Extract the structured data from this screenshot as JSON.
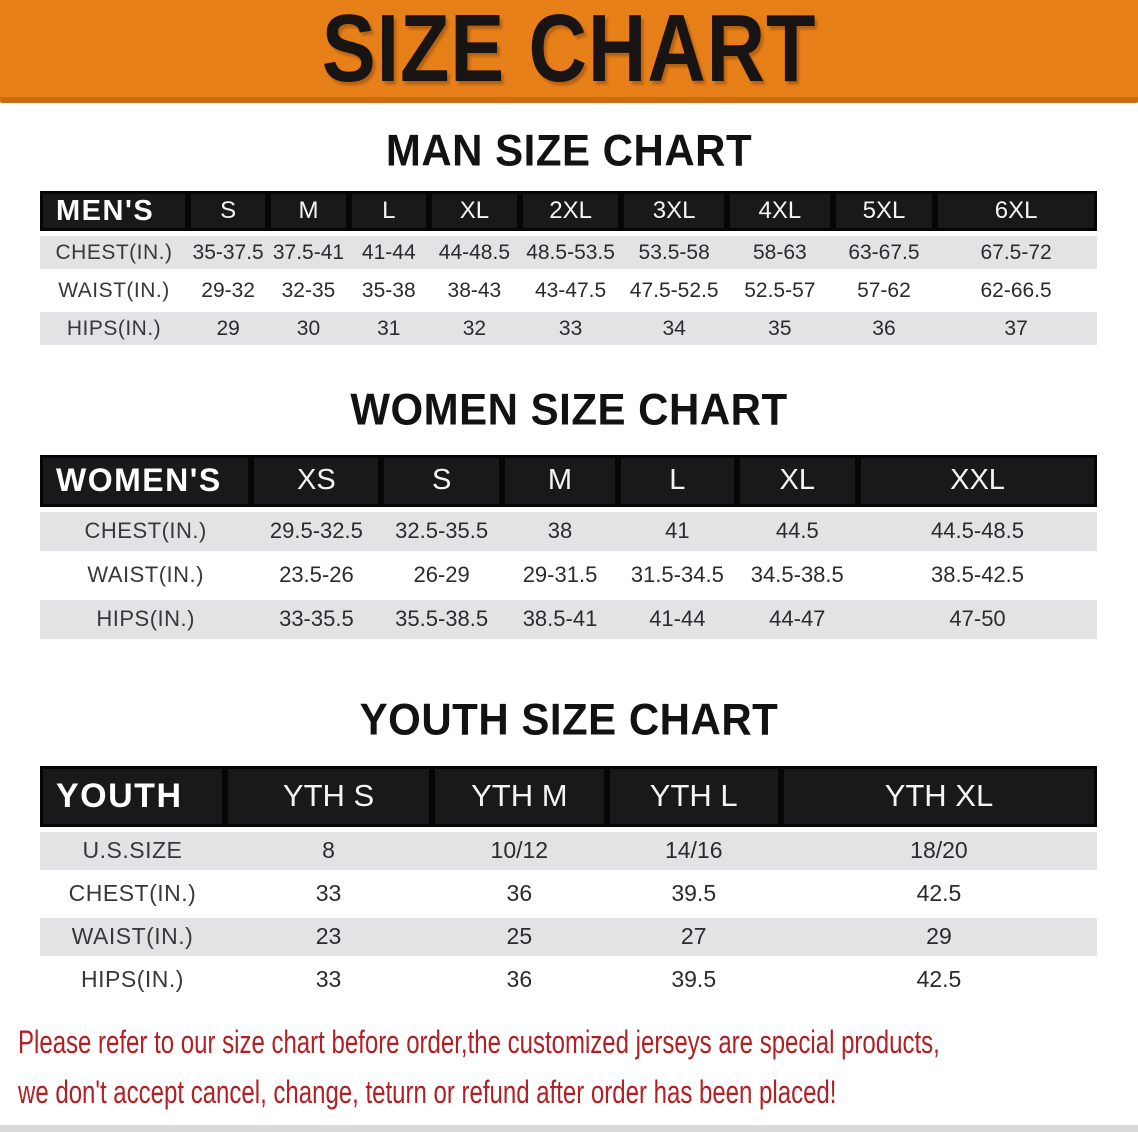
{
  "banner": {
    "title": "SIZE CHART"
  },
  "colors": {
    "banner_orange": "#e8801a",
    "banner_shadow": "#c96d10",
    "header_black": "#19191b",
    "stripe_gray": "#e3e3e5",
    "notice_red": "#b02025"
  },
  "chart_data": [
    {
      "type": "table",
      "id": "men",
      "title": "MAN SIZE CHART",
      "columns": [
        "MEN'S",
        "S",
        "M",
        "L",
        "XL",
        "2XL",
        "3XL",
        "4XL",
        "5XL",
        "6XL"
      ],
      "rows": [
        [
          "CHEST(IN.)",
          "35-37.5",
          "37.5-41",
          "41-44",
          "44-48.5",
          "48.5-53.5",
          "53.5-58",
          "58-63",
          "63-67.5",
          "67.5-72"
        ],
        [
          "WAIST(IN.)",
          "29-32",
          "32-35",
          "35-38",
          "38-43",
          "43-47.5",
          "47.5-52.5",
          "52.5-57",
          "57-62",
          "62-66.5"
        ],
        [
          "HIPS(IN.)",
          "29",
          "30",
          "31",
          "32",
          "33",
          "34",
          "35",
          "36",
          "37"
        ]
      ]
    },
    {
      "type": "table",
      "id": "women",
      "title": "WOMEN SIZE CHART",
      "columns": [
        "WOMEN'S",
        "XS",
        "S",
        "M",
        "L",
        "XL",
        "XXL"
      ],
      "rows": [
        [
          "CHEST(IN.)",
          "29.5-32.5",
          "32.5-35.5",
          "38",
          "41",
          "44.5",
          "44.5-48.5"
        ],
        [
          "WAIST(IN.)",
          "23.5-26",
          "26-29",
          "29-31.5",
          "31.5-34.5",
          "34.5-38.5",
          "38.5-42.5"
        ],
        [
          "HIPS(IN.)",
          "33-35.5",
          "35.5-38.5",
          "38.5-41",
          "41-44",
          "44-47",
          "47-50"
        ]
      ]
    },
    {
      "type": "table",
      "id": "youth",
      "title": "YOUTH SIZE CHART",
      "columns": [
        "YOUTH",
        "YTH S",
        "YTH M",
        "YTH L",
        "YTH XL"
      ],
      "rows": [
        [
          "U.S.SIZE",
          "8",
          "10/12",
          "14/16",
          "18/20"
        ],
        [
          "CHEST(IN.)",
          "33",
          "36",
          "39.5",
          "42.5"
        ],
        [
          "WAIST(IN.)",
          "23",
          "25",
          "27",
          "29"
        ],
        [
          "HIPS(IN.)",
          "33",
          "36",
          "39.5",
          "42.5"
        ]
      ]
    }
  ],
  "footer": {
    "line1": "Please refer to our size chart before order,the customized jerseys are special products,",
    "line2": "we don't accept cancel, change, teturn or refund after order has been placed!"
  }
}
